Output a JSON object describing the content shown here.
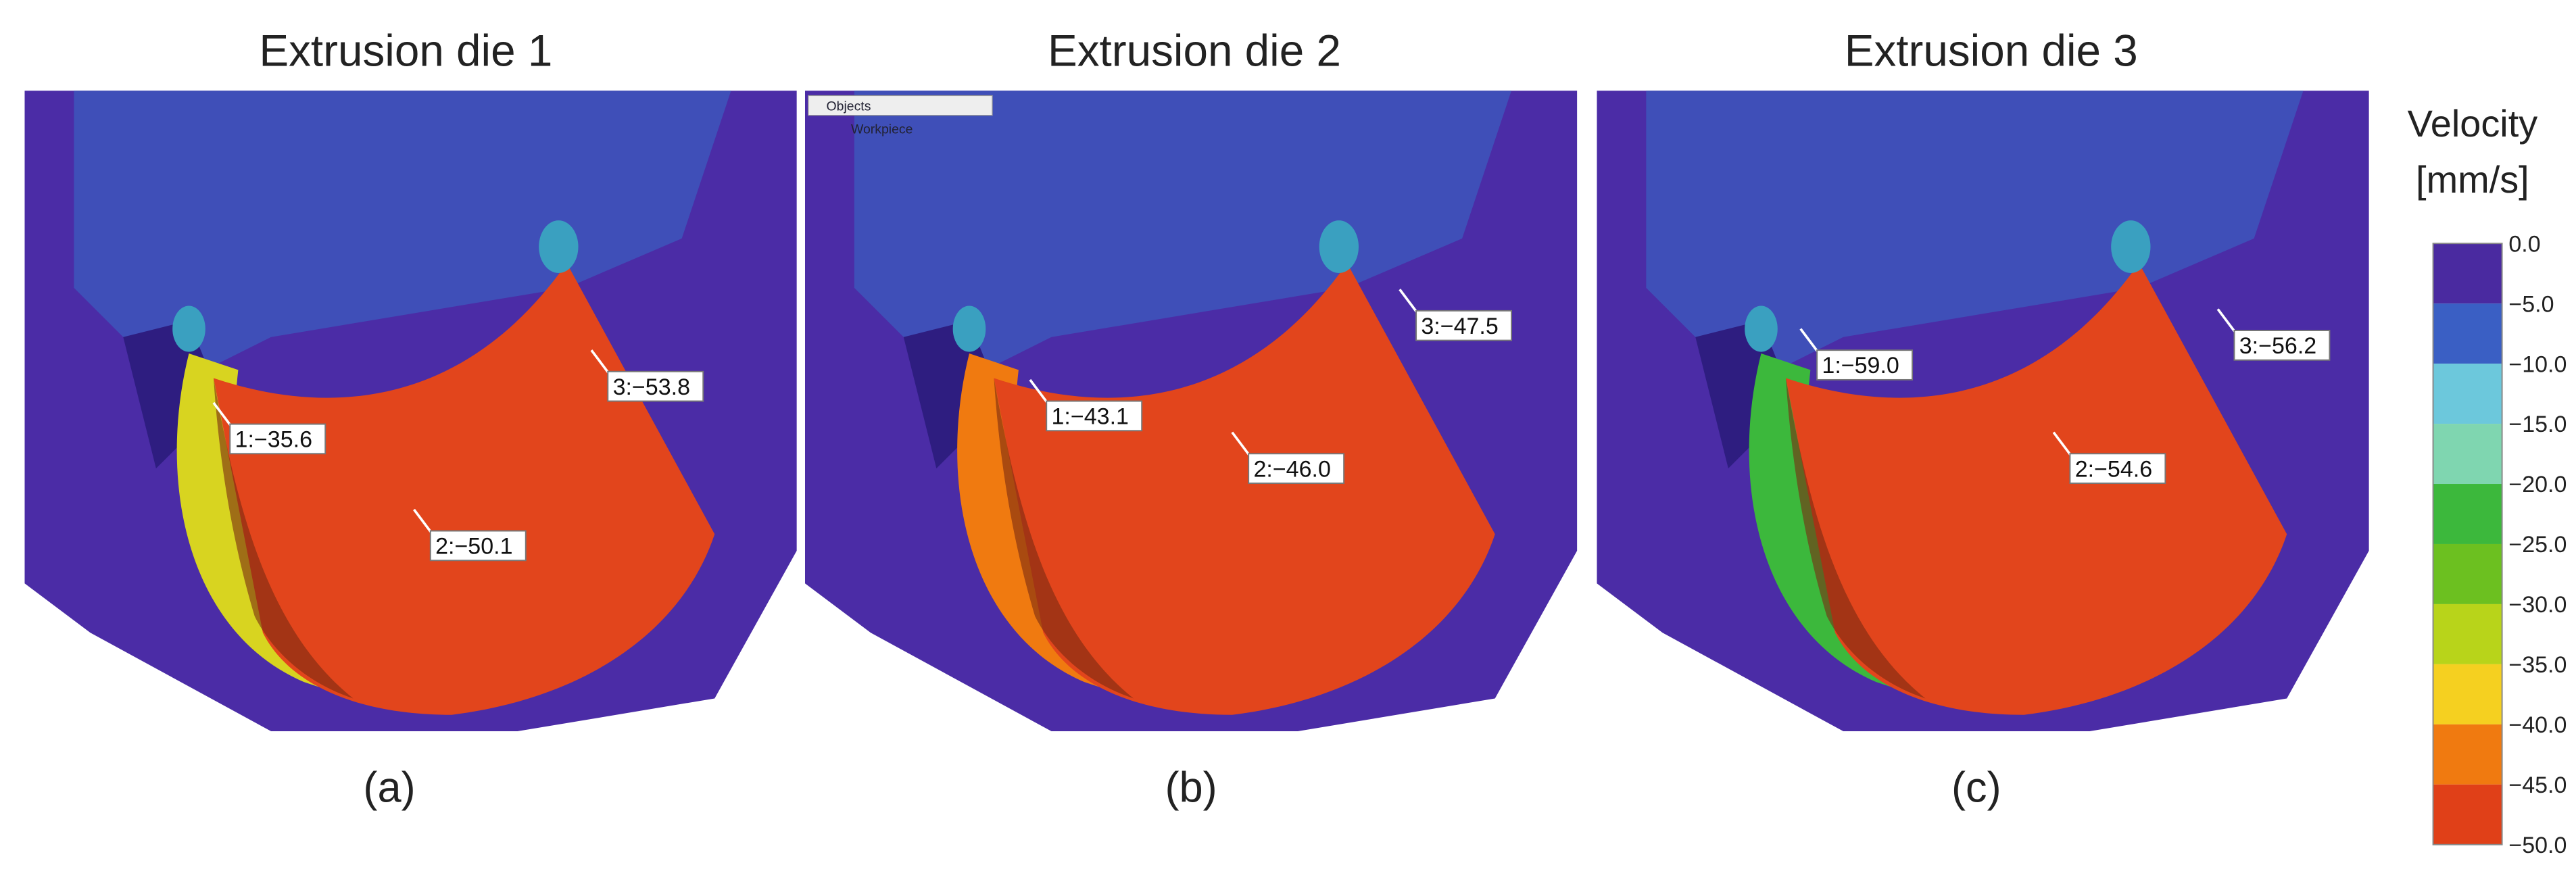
{
  "panels": [
    {
      "title": "Extrusion die 1",
      "caption": "(a)",
      "points": [
        "1:−35.6",
        "2:−50.1",
        "3:−53.8"
      ]
    },
    {
      "title": "Extrusion die 2",
      "caption": "(b)",
      "points": [
        "1:−43.1",
        "2:−46.0",
        "3:−47.5"
      ]
    },
    {
      "title": "Extrusion die 3",
      "caption": "(c)",
      "points": [
        "1:−59.0",
        "2:−54.6",
        "3:−56.2"
      ]
    }
  ],
  "objects_tree": {
    "header": "Objects",
    "items": [
      "Workpiece"
    ]
  },
  "colorbar": {
    "title": [
      "Velocity",
      "[mm/s]"
    ],
    "labels": [
      "0.0",
      "−5.0",
      "−10.0",
      "−15.0",
      "−20.0",
      "−25.0",
      "−30.0",
      "−35.0",
      "−40.0",
      "−45.0",
      "−50.0"
    ]
  }
}
